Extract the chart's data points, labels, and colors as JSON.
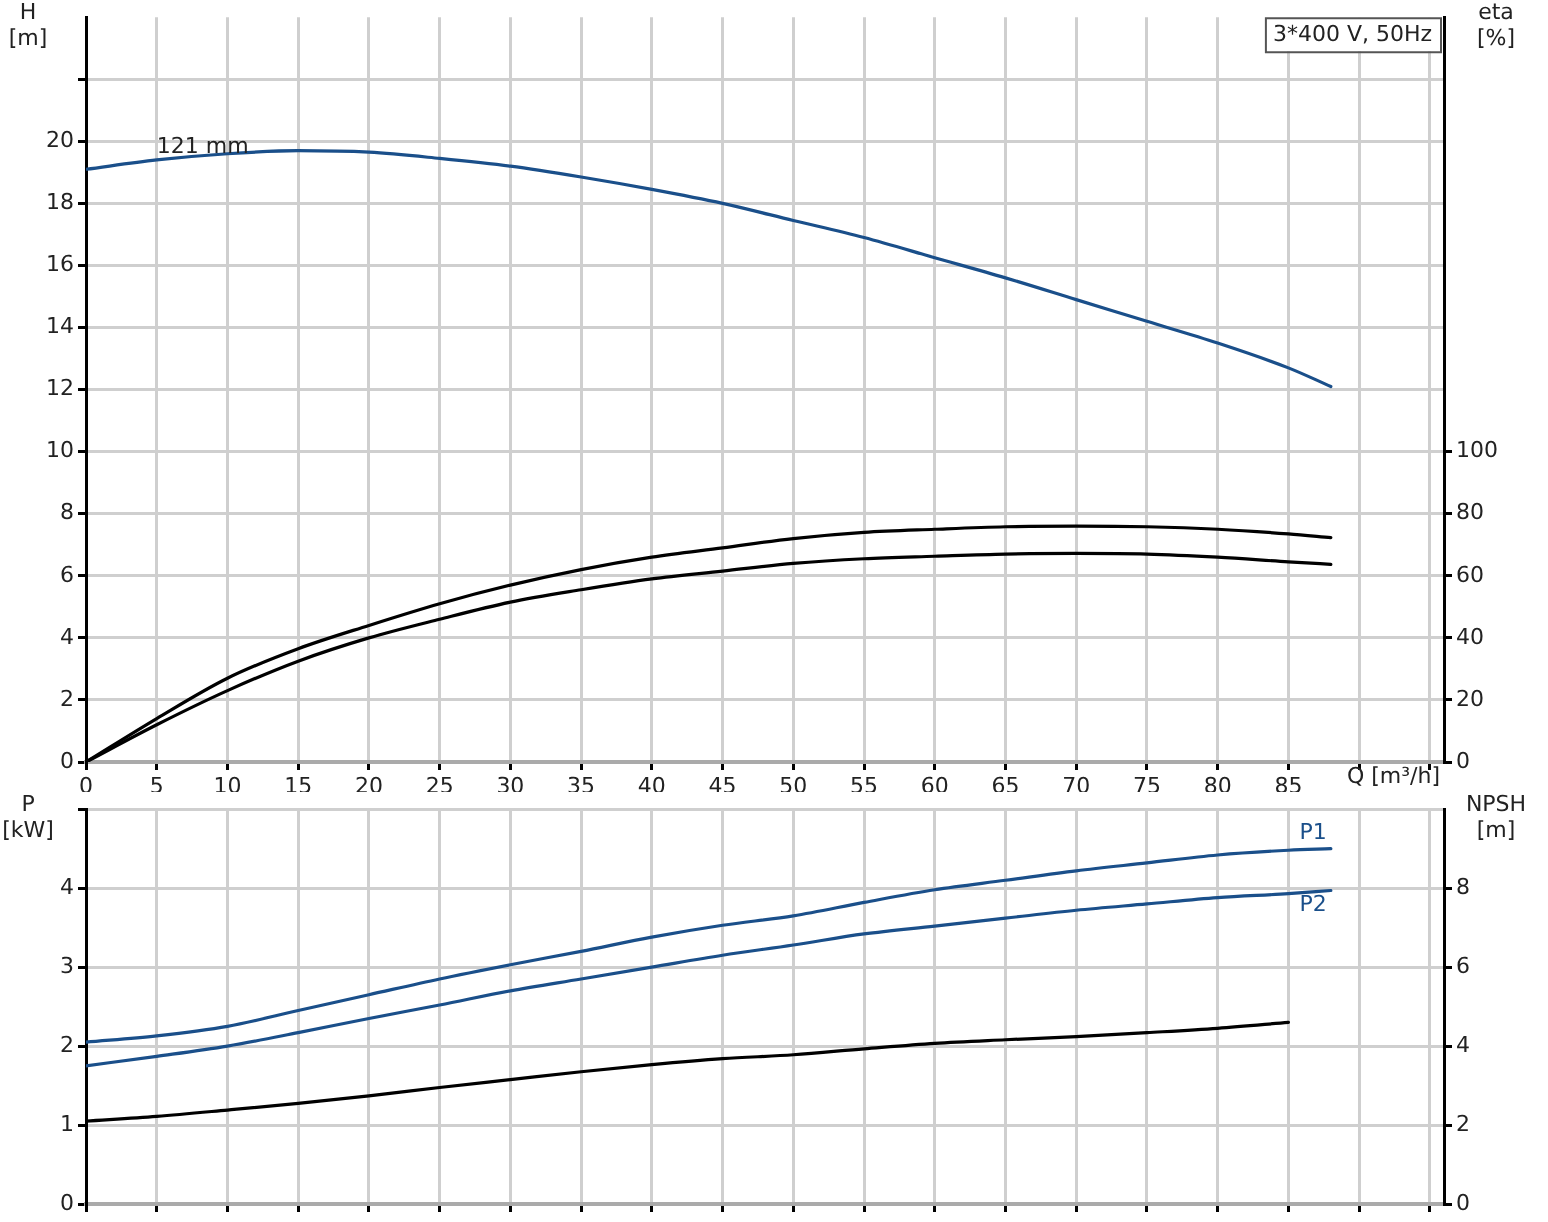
{
  "chart_data": [
    {
      "type": "line",
      "title": "3*400 V, 50Hz",
      "xlabel": "Q [m³/h]",
      "ylabel": "H [m]",
      "y2label": "eta [%]",
      "x": [
        0,
        5,
        10,
        15,
        20,
        25,
        30,
        35,
        40,
        45,
        50,
        55,
        60,
        65,
        70,
        75,
        80,
        85,
        88
      ],
      "series": [
        {
          "name": "121 mm",
          "color": "#1a4f8a",
          "values": [
            19.1,
            19.4,
            19.6,
            19.7,
            19.65,
            19.45,
            19.2,
            18.85,
            18.45,
            18.0,
            17.45,
            16.9,
            16.25,
            15.6,
            14.9,
            14.2,
            13.5,
            12.7,
            12.1
          ]
        },
        {
          "color": "#000000",
          "axis": "y2",
          "values": [
            0,
            14,
            27,
            36.5,
            44,
            51,
            57,
            62,
            66,
            69,
            72,
            74,
            75,
            75.8,
            76,
            75.8,
            75,
            73.5,
            72.3
          ]
        },
        {
          "color": "#000000",
          "axis": "y2",
          "values": [
            0,
            12,
            23,
            32.5,
            40,
            46,
            51.5,
            55.5,
            59,
            61.5,
            64,
            65.5,
            66.3,
            67,
            67.2,
            67,
            66,
            64.5,
            63.7
          ]
        }
      ],
      "xlim": [
        0,
        96
      ],
      "xticks": [
        0,
        5,
        10,
        15,
        20,
        25,
        30,
        35,
        40,
        45,
        50,
        55,
        60,
        65,
        70,
        75,
        80,
        85,
        {
          "value": 90,
          "label": null
        },
        {
          "value": 95,
          "label": null
        }
      ],
      "ylim": [
        0,
        24
      ],
      "yticks": [
        0,
        2,
        4,
        6,
        8,
        10,
        12,
        14,
        16,
        18,
        20,
        {
          "value": 22,
          "label": null
        }
      ],
      "y2lim": [
        0,
        240
      ],
      "y2ticks": [
        0,
        20,
        40,
        60,
        80,
        100
      ],
      "grid": true,
      "legend": false,
      "marker": "none",
      "line_style": "solid"
    },
    {
      "type": "line",
      "ylabel": "P [kW]",
      "y2label": "NPSH [m]",
      "x": [
        0,
        5,
        10,
        15,
        20,
        25,
        30,
        35,
        40,
        45,
        50,
        55,
        60,
        65,
        70,
        75,
        80,
        85,
        88
      ],
      "series": [
        {
          "name": "P1",
          "color": "#1a4f8a",
          "values": [
            2.05,
            2.13,
            2.25,
            2.45,
            2.65,
            2.85,
            3.03,
            3.2,
            3.38,
            3.53,
            3.65,
            3.82,
            3.98,
            4.1,
            4.22,
            4.32,
            4.42,
            4.48,
            4.5
          ]
        },
        {
          "name": "P2",
          "color": "#1a4f8a",
          "values": [
            1.75,
            1.87,
            2.0,
            2.17,
            2.35,
            2.52,
            2.7,
            2.85,
            3.0,
            3.15,
            3.28,
            3.42,
            3.52,
            3.62,
            3.72,
            3.8,
            3.88,
            3.93,
            3.97
          ]
        },
        {
          "color": "#000000",
          "axis": "y2",
          "x": [
            0,
            5,
            10,
            15,
            20,
            25,
            30,
            35,
            40,
            45,
            50,
            55,
            60,
            65,
            70,
            75,
            80,
            85
          ],
          "values": [
            2.1,
            2.22,
            2.38,
            2.55,
            2.74,
            2.95,
            3.15,
            3.35,
            3.53,
            3.68,
            3.78,
            3.93,
            4.07,
            4.16,
            4.24,
            4.34,
            4.45,
            4.6
          ]
        }
      ],
      "xlim": [
        0,
        96
      ],
      "xticks": [
        0,
        5,
        10,
        15,
        20,
        25,
        30,
        35,
        40,
        45,
        50,
        55,
        60,
        65,
        70,
        75,
        80,
        85,
        90,
        95
      ],
      "ylim": [
        0,
        5
      ],
      "yticks": [
        0,
        1,
        2,
        3,
        4,
        {
          "value": 5,
          "label": null
        }
      ],
      "y2lim": [
        0,
        10
      ],
      "y2ticks": [
        0,
        2,
        4,
        6,
        8
      ],
      "tick_labels": "y",
      "grid": true,
      "legend": false,
      "marker": "none",
      "line_style": "solid"
    }
  ]
}
